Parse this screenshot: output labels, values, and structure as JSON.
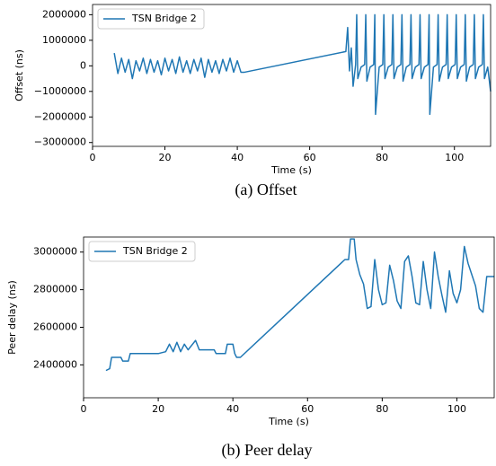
{
  "chart_data": [
    {
      "type": "line",
      "caption": "(a) Offset",
      "xlabel": "Time (s)",
      "ylabel": "Offset (ns)",
      "xlim": [
        0,
        110
      ],
      "xticks": [
        0,
        20,
        40,
        60,
        80,
        100
      ],
      "ylim": [
        -3150000,
        2400000
      ],
      "yticks": [
        {
          "value": -3000000,
          "label": "−3000000"
        },
        {
          "value": -2000000,
          "label": "−2000000"
        },
        {
          "value": -1000000,
          "label": "−1000000"
        },
        0,
        1000000,
        2000000
      ],
      "legend": "upper left",
      "grid": false,
      "x": [
        6,
        7,
        8,
        9,
        10,
        11,
        12,
        13,
        14,
        15,
        16,
        17,
        18,
        19,
        20,
        21,
        22,
        23,
        24,
        25,
        26,
        27,
        28,
        29,
        30,
        31,
        32,
        33,
        34,
        35,
        36,
        37,
        38,
        39,
        40,
        41,
        42,
        70,
        70.5,
        71,
        71.5,
        72,
        72.7,
        73,
        73.3,
        74.2,
        75.2,
        75.5,
        75.8,
        76.7,
        77.7,
        78,
        78.2,
        79.2,
        80.2,
        80.5,
        80.8,
        81.7,
        82.7,
        83,
        83.3,
        84.2,
        85.2,
        85.5,
        85.8,
        86.7,
        87.7,
        88,
        88.3,
        89.2,
        90.2,
        90.5,
        90.8,
        91.7,
        92.7,
        93,
        93.2,
        94.2,
        95.2,
        95.5,
        95.8,
        96.7,
        97.7,
        98,
        98.3,
        99.2,
        100.2,
        100.5,
        100.8,
        101.7,
        102.7,
        103,
        103.3,
        104.2,
        105.2,
        105.5,
        105.8,
        106.7,
        107.7,
        108,
        108.3,
        109.2,
        110
      ],
      "series": [
        {
          "name": "TSN Bridge 2",
          "color": "#1f77b4",
          "values": [
            500000,
            -300000,
            300000,
            -250000,
            250000,
            -500000,
            200000,
            -200000,
            300000,
            -300000,
            250000,
            -250000,
            200000,
            -350000,
            300000,
            -200000,
            250000,
            -300000,
            350000,
            -250000,
            200000,
            -300000,
            250000,
            -200000,
            300000,
            -450000,
            250000,
            -250000,
            200000,
            -300000,
            250000,
            -200000,
            300000,
            -250000,
            200000,
            -250000,
            -250000,
            560000,
            1500000,
            -200000,
            700000,
            -800000,
            50000,
            2000000,
            -500000,
            -50000,
            50000,
            2000000,
            -600000,
            -50000,
            50000,
            2000000,
            -1900000,
            -50000,
            50000,
            2000000,
            -500000,
            -50000,
            50000,
            2000000,
            -500000,
            -50000,
            50000,
            2000000,
            -600000,
            -50000,
            50000,
            2000000,
            -500000,
            -50000,
            50000,
            2000000,
            -500000,
            -50000,
            50000,
            2000000,
            -1900000,
            -50000,
            50000,
            2000000,
            -600000,
            -50000,
            50000,
            2000000,
            -500000,
            -50000,
            50000,
            2000000,
            -500000,
            -50000,
            50000,
            2000000,
            -600000,
            -50000,
            50000,
            2000000,
            -500000,
            -50000,
            50000,
            2000000,
            -500000,
            -50000,
            -1000000
          ]
        }
      ]
    },
    {
      "type": "line",
      "caption": "(b) Peer delay",
      "xlabel": "Time (s)",
      "ylabel": "Peer delay (ns)",
      "xlim": [
        0,
        110
      ],
      "xticks": [
        0,
        20,
        40,
        60,
        80,
        100
      ],
      "ylim": [
        2225000,
        3080000
      ],
      "yticks": [
        2400000,
        2600000,
        2800000,
        3000000
      ],
      "legend": "upper left",
      "grid": false,
      "x": [
        6,
        7,
        7.5,
        10,
        10.5,
        12,
        12.5,
        20,
        22,
        23,
        24,
        25,
        26,
        27,
        28,
        30,
        31,
        35,
        35.5,
        38,
        38.5,
        40,
        40.5,
        41,
        42,
        70,
        71,
        71.5,
        72.5,
        73,
        74,
        75,
        76,
        77,
        78,
        79,
        80,
        81,
        82,
        83,
        84,
        85,
        86,
        87,
        88,
        89,
        90,
        91,
        92,
        93,
        94,
        95,
        96,
        97,
        98,
        99,
        100,
        101,
        102,
        103,
        104,
        105,
        106,
        107,
        108,
        110
      ],
      "series": [
        {
          "name": "TSN Bridge 2",
          "color": "#1f77b4",
          "values": [
            2370000,
            2380000,
            2440000,
            2440000,
            2420000,
            2420000,
            2460000,
            2460000,
            2470000,
            2510000,
            2470000,
            2520000,
            2470000,
            2510000,
            2480000,
            2530000,
            2480000,
            2480000,
            2460000,
            2460000,
            2510000,
            2510000,
            2460000,
            2440000,
            2440000,
            2960000,
            2960000,
            3070000,
            3070000,
            2960000,
            2880000,
            2830000,
            2700000,
            2710000,
            2960000,
            2800000,
            2720000,
            2730000,
            2930000,
            2850000,
            2740000,
            2700000,
            2950000,
            2980000,
            2870000,
            2730000,
            2720000,
            2950000,
            2800000,
            2700000,
            3000000,
            2870000,
            2770000,
            2680000,
            2900000,
            2780000,
            2730000,
            2800000,
            3030000,
            2940000,
            2880000,
            2820000,
            2700000,
            2680000,
            2870000,
            2870000
          ]
        }
      ]
    }
  ]
}
